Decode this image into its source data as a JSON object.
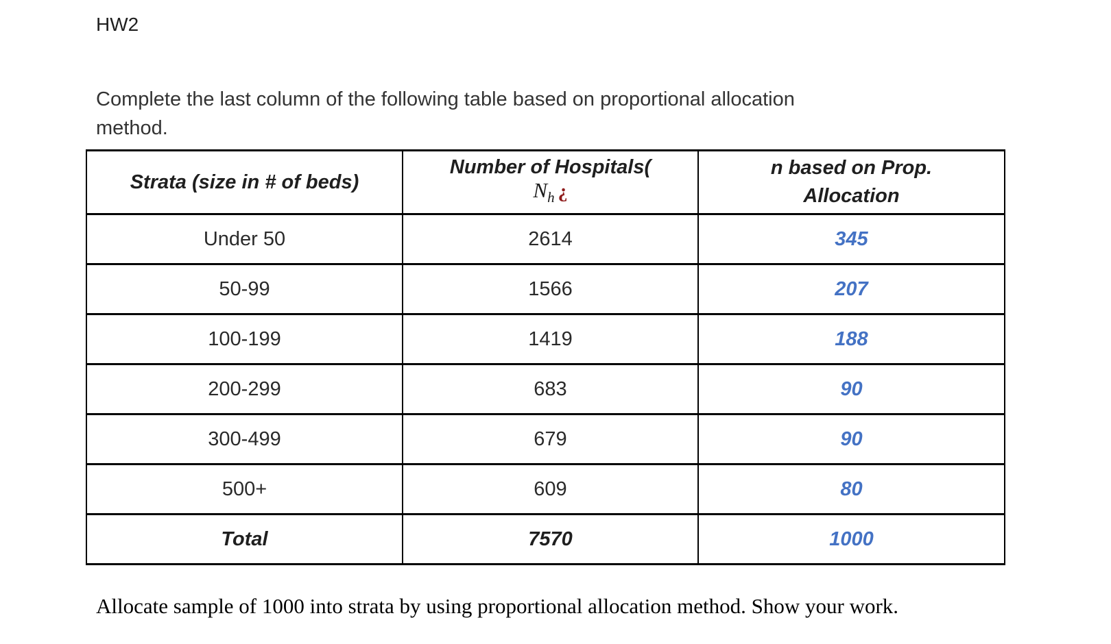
{
  "page": {
    "title": "HW2",
    "instruction": "Complete the last column of the following table based on proportional allocation\nmethod.",
    "footer": "Allocate sample of 1000 into strata by using proportional allocation method. Show your work."
  },
  "table": {
    "headers": {
      "strata": "Strata (size in # of beds)",
      "hospitals_label": "Number of Hospitals(",
      "math_symbol": "N",
      "math_subscript": "h",
      "math_artifact": "¿",
      "allocation": "n based on Prop.\nAllocation"
    },
    "rows": [
      {
        "strata": "Under 50",
        "hospitals": "2614",
        "allocation": "345"
      },
      {
        "strata": "50-99",
        "hospitals": "1566",
        "allocation": "207"
      },
      {
        "strata": "100-199",
        "hospitals": "1419",
        "allocation": "188"
      },
      {
        "strata": "200-299",
        "hospitals": "683",
        "allocation": "90"
      },
      {
        "strata": "300-499",
        "hospitals": "679",
        "allocation": "90"
      },
      {
        "strata": "500+",
        "hospitals": "609",
        "allocation": "80"
      }
    ],
    "total": {
      "strata": "Total",
      "hospitals": "7570",
      "allocation": "1000"
    }
  },
  "colors": {
    "allocation_blue": "#4472c4",
    "math_artifact_red": "#8e1b1b",
    "text_dark": "#262626",
    "border_black": "#000000"
  }
}
